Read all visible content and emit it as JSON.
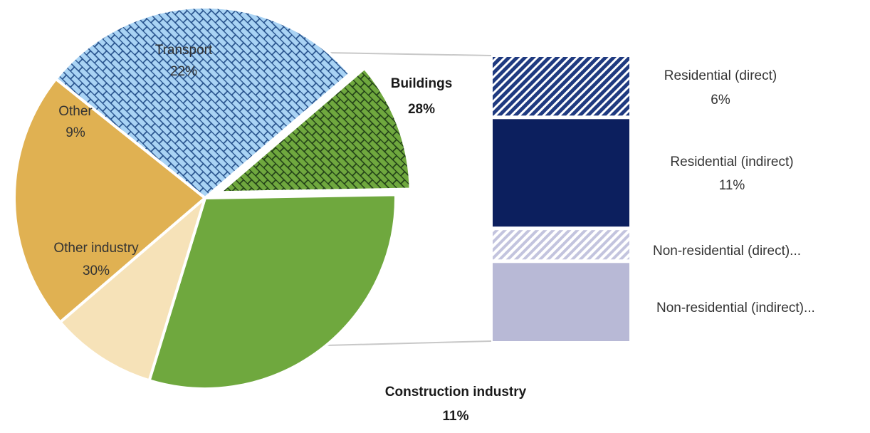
{
  "chart_data": [
    {
      "type": "pie",
      "slices": [
        {
          "key": "other_industry",
          "label": "Other industry",
          "value": 30,
          "value_label": "30%",
          "color": "#6fa83e"
        },
        {
          "key": "other",
          "label": "Other",
          "value": 9,
          "value_label": "9%",
          "color": "#f6e2b8"
        },
        {
          "key": "transport",
          "label": "Transport",
          "value": 22,
          "value_label": "22%",
          "color": "#e0b152"
        },
        {
          "key": "buildings",
          "label": "Buildings",
          "value": 28,
          "value_label": "28%",
          "color": "#a9d3f4",
          "pattern": "brick"
        },
        {
          "key": "construction",
          "label": "Construction industry",
          "value": 11,
          "value_label": "11%",
          "color": "#6fa83e",
          "pattern": "brick",
          "exploded": true
        }
      ]
    },
    {
      "type": "bar",
      "stacked": true,
      "breakdown_of": "Buildings",
      "segments": [
        {
          "key": "res_direct",
          "label": "Residential (direct)",
          "value": 6,
          "value_label": "6%",
          "color": "#1f3a80",
          "pattern": "hatch"
        },
        {
          "key": "res_indirect",
          "label": "Residential (indirect)",
          "value": 11,
          "value_label": "11%",
          "color": "#0c1f5e"
        },
        {
          "key": "nonres_direct",
          "label": "Non-residential (direct)...",
          "value": 3,
          "value_label": "",
          "color": "#c3c4de",
          "pattern": "hatch"
        },
        {
          "key": "nonres_indirect",
          "label": "Non-residential (indirect)...",
          "value": 8,
          "value_label": "",
          "color": "#b8b9d6"
        }
      ]
    }
  ]
}
